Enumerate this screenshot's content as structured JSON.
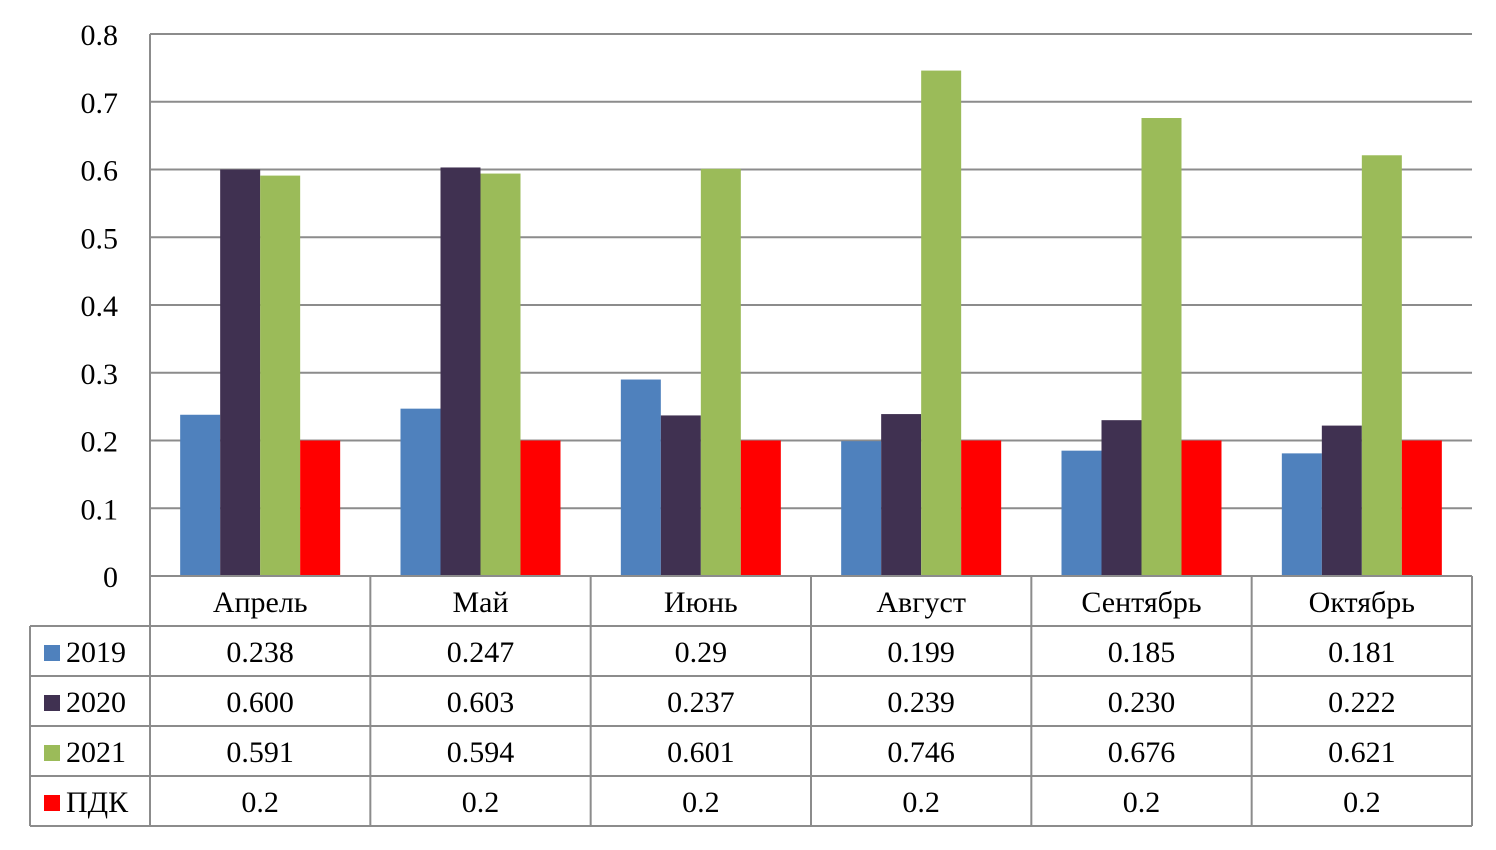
{
  "chart_data": {
    "type": "bar",
    "categories": [
      "Апрель",
      "Май",
      "Июнь",
      "Август",
      "Сентябрь",
      "Октябрь"
    ],
    "series": [
      {
        "name": "2019",
        "color": "#4f81bd",
        "values": [
          0.238,
          0.247,
          0.29,
          0.199,
          0.185,
          0.181
        ],
        "labels": [
          "0.238",
          "0.247",
          "0.29",
          "0.199",
          "0.185",
          "0.181"
        ]
      },
      {
        "name": "2020",
        "color": "#403151",
        "values": [
          0.6,
          0.603,
          0.237,
          0.239,
          0.23,
          0.222
        ],
        "labels": [
          "0.600",
          "0.603",
          "0.237",
          "0.239",
          "0.230",
          "0.222"
        ]
      },
      {
        "name": "2021",
        "color": "#9bbb59",
        "values": [
          0.591,
          0.594,
          0.601,
          0.746,
          0.676,
          0.621
        ],
        "labels": [
          "0.591",
          "0.594",
          "0.601",
          "0.746",
          "0.676",
          "0.621"
        ]
      },
      {
        "name": "ПДК",
        "color": "#ff0000",
        "values": [
          0.2,
          0.2,
          0.2,
          0.2,
          0.2,
          0.2
        ],
        "labels": [
          "0.2",
          "0.2",
          "0.2",
          "0.2",
          "0.2",
          "0.2"
        ]
      }
    ],
    "ylim": [
      0,
      0.8
    ],
    "yticks": [
      "0",
      "0.1",
      "0.2",
      "0.3",
      "0.4",
      "0.5",
      "0.6",
      "0.7",
      "0.8"
    ],
    "grid": true,
    "legend": "data-table"
  }
}
